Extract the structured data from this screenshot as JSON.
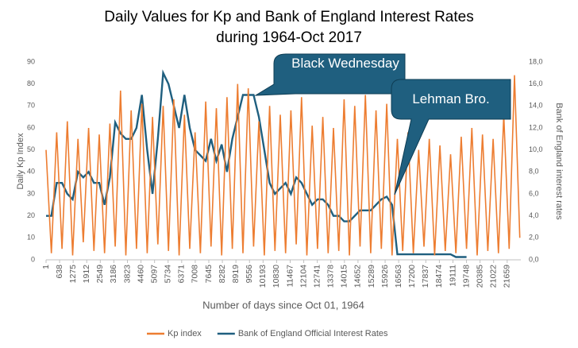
{
  "chart_data": {
    "type": "line",
    "title": [
      "Daily Values for Kp and Bank of England Interest Rates",
      "during 1964-Oct 2017"
    ],
    "x_label": "Number of days since Oct 01, 1964",
    "y_label": "Daily Kp Index",
    "y2_label": "Bank of England interest rates",
    "annotations": [
      "Black Wednesday",
      "Lehman Bro."
    ],
    "x": [
      1,
      250,
      500,
      750,
      1000,
      1250,
      1500,
      1750,
      2000,
      2250,
      2500,
      2750,
      3000,
      3250,
      3500,
      3750,
      4000,
      4250,
      4500,
      4750,
      5000,
      5250,
      5500,
      5750,
      6000,
      6250,
      6500,
      6750,
      7000,
      7250,
      7500,
      7750,
      8000,
      8250,
      8500,
      8750,
      9000,
      9250,
      9500,
      9750,
      10000,
      10250,
      10500,
      10750,
      11000,
      11250,
      11500,
      11750,
      12000,
      12250,
      12500,
      12750,
      13000,
      13250,
      13500,
      13750,
      14000,
      14250,
      14500,
      14750,
      15000,
      15250,
      15500,
      15750,
      16000,
      16250,
      16500,
      16750,
      17000,
      17250,
      17500,
      17750,
      18000,
      18250,
      18500,
      18750,
      19000,
      19250,
      19500,
      19750,
      20000,
      20250,
      20500,
      20750,
      21000,
      21250,
      21500,
      21750,
      22000,
      22250
    ],
    "xlim": [
      1,
      22300
    ],
    "xticks": [
      1,
      638,
      1275,
      1912,
      2549,
      3186,
      3823,
      4460,
      5097,
      5734,
      6371,
      7008,
      7645,
      8282,
      8919,
      9556,
      10193,
      10830,
      11467,
      12104,
      12741,
      13378,
      14015,
      14652,
      15289,
      15926,
      16563,
      17200,
      17837,
      18474,
      19111,
      19748,
      20385,
      21022,
      21659
    ],
    "ylim": [
      0,
      90
    ],
    "yticks": [
      0,
      10,
      20,
      30,
      40,
      50,
      60,
      70,
      80,
      90
    ],
    "y2lim": [
      0,
      18
    ],
    "y2ticks": [
      {
        "value": 0,
        "label": "0,0"
      },
      {
        "value": 2,
        "label": "2,0"
      },
      {
        "value": 4,
        "label": "4,0"
      },
      {
        "value": 6,
        "label": "6,0"
      },
      {
        "value": 8,
        "label": "8,0"
      },
      {
        "value": 10,
        "label": "10,0"
      },
      {
        "value": 12,
        "label": "12,0"
      },
      {
        "value": 14,
        "label": "14,0"
      },
      {
        "value": 16,
        "label": "16,0"
      },
      {
        "value": 18,
        "label": "18,0"
      }
    ],
    "series": [
      {
        "name": "Kp index",
        "color": "#ed7d31",
        "values": [
          50,
          3,
          58,
          5,
          63,
          2,
          55,
          8,
          60,
          4,
          57,
          3,
          62,
          6,
          77,
          2,
          68,
          5,
          71,
          3,
          65,
          7,
          70,
          4,
          73,
          2,
          66,
          5,
          58,
          3,
          72,
          6,
          69,
          2,
          74,
          5,
          80,
          3,
          78,
          6,
          63,
          2,
          70,
          4,
          66,
          3,
          68,
          7,
          74,
          2,
          61,
          5,
          65,
          3,
          60,
          4,
          73,
          2,
          70,
          6,
          75,
          3,
          68,
          5,
          71,
          2,
          55,
          4,
          58,
          3,
          50,
          6,
          55,
          2,
          52,
          4,
          48,
          3,
          56,
          5,
          60,
          2,
          57,
          4,
          55,
          3,
          66,
          5,
          84,
          10
        ]
      },
      {
        "name": "Bank of England Official Interest Rates",
        "color": "#1f5f7f",
        "axis": "y2",
        "values": [
          4,
          4,
          7,
          7,
          6,
          5.5,
          8,
          7.5,
          8,
          7,
          7,
          5,
          7.5,
          12.5,
          11.5,
          11,
          11,
          12,
          15,
          10,
          6,
          11,
          17,
          16,
          14,
          12,
          15,
          12,
          10,
          9.5,
          9,
          11,
          9,
          10.5,
          8,
          11,
          13,
          15,
          15,
          15,
          13,
          10,
          7,
          6,
          6.5,
          7,
          6,
          7.5,
          7,
          6,
          5,
          5.5,
          5.5,
          5,
          4,
          4,
          3.5,
          3.5,
          4,
          4.5,
          4.5,
          4.5,
          5,
          5.5,
          5.75,
          5,
          0.5,
          0.5,
          0.5,
          0.5,
          0.5,
          0.5,
          0.5,
          0.5,
          0.5,
          0.5,
          0.5,
          0.25,
          0.25,
          0.25,
          null,
          null,
          null,
          null,
          null,
          null,
          null,
          null,
          null,
          null
        ]
      }
    ]
  }
}
